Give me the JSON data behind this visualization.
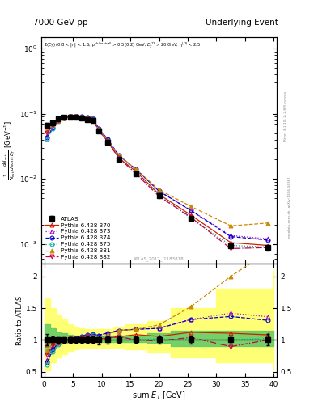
{
  "title_left": "7000 GeV pp",
  "title_right": "Underlying Event",
  "annotation": "ATLAS_2012_I1183818",
  "right_label": "Rivet 3.1.10, ≥ 2.8M events",
  "right_label2": "mcplots.cern.ch [arXiv:1306.3436]",
  "atlas_x": [
    0.5,
    1.5,
    2.5,
    3.5,
    4.5,
    5.5,
    6.5,
    7.5,
    8.5,
    9.5,
    11.0,
    13.0,
    16.0,
    20.0,
    25.5,
    32.5,
    39.0
  ],
  "atlas_y": [
    0.067,
    0.072,
    0.083,
    0.088,
    0.089,
    0.089,
    0.086,
    0.082,
    0.079,
    0.055,
    0.037,
    0.02,
    0.012,
    0.0055,
    0.0025,
    0.00095,
    0.00088
  ],
  "atlas_yerr": [
    0.006,
    0.004,
    0.004,
    0.004,
    0.004,
    0.004,
    0.004,
    0.004,
    0.004,
    0.004,
    0.002,
    0.001,
    0.0006,
    0.0003,
    0.00015,
    6e-05,
    8e-05
  ],
  "py370_x": [
    0.5,
    1.5,
    2.5,
    3.5,
    4.5,
    5.5,
    6.5,
    7.5,
    8.5,
    9.5,
    11.0,
    13.0,
    16.0,
    20.0,
    25.5,
    32.5,
    39.0
  ],
  "py370_y": [
    0.062,
    0.071,
    0.082,
    0.088,
    0.09,
    0.09,
    0.088,
    0.085,
    0.082,
    0.056,
    0.038,
    0.021,
    0.013,
    0.0058,
    0.0028,
    0.00105,
    0.00095
  ],
  "py373_x": [
    0.5,
    1.5,
    2.5,
    3.5,
    4.5,
    5.5,
    6.5,
    7.5,
    8.5,
    9.5,
    11.0,
    13.0,
    16.0,
    20.0,
    25.5,
    32.5,
    39.0
  ],
  "py373_y": [
    0.046,
    0.063,
    0.08,
    0.088,
    0.091,
    0.092,
    0.091,
    0.089,
    0.086,
    0.059,
    0.041,
    0.023,
    0.014,
    0.0065,
    0.0033,
    0.00135,
    0.0012
  ],
  "py374_x": [
    0.5,
    1.5,
    2.5,
    3.5,
    4.5,
    5.5,
    6.5,
    7.5,
    8.5,
    9.5,
    11.0,
    13.0,
    16.0,
    20.0,
    25.5,
    32.5,
    39.0
  ],
  "py374_y": [
    0.043,
    0.061,
    0.079,
    0.087,
    0.09,
    0.092,
    0.091,
    0.089,
    0.086,
    0.059,
    0.041,
    0.023,
    0.014,
    0.0065,
    0.0033,
    0.0013,
    0.00115
  ],
  "py375_x": [
    0.5,
    1.5,
    2.5,
    3.5,
    4.5,
    5.5,
    6.5,
    7.5,
    8.5,
    9.5,
    11.0,
    13.0,
    16.0,
    20.0,
    25.5,
    32.5,
    39.0
  ],
  "py375_y": [
    0.041,
    0.059,
    0.077,
    0.086,
    0.09,
    0.091,
    0.09,
    0.088,
    0.085,
    0.057,
    0.039,
    0.021,
    0.012,
    0.0056,
    0.0025,
    0.00095,
    0.0009
  ],
  "py381_x": [
    0.5,
    1.5,
    2.5,
    3.5,
    4.5,
    5.5,
    6.5,
    7.5,
    8.5,
    9.5,
    11.0,
    13.0,
    16.0,
    20.0,
    25.5,
    32.5,
    39.0
  ],
  "py381_y": [
    0.055,
    0.068,
    0.08,
    0.086,
    0.088,
    0.088,
    0.087,
    0.085,
    0.082,
    0.057,
    0.04,
    0.023,
    0.014,
    0.0068,
    0.0038,
    0.0019,
    0.0021
  ],
  "py382_x": [
    0.5,
    1.5,
    2.5,
    3.5,
    4.5,
    5.5,
    6.5,
    7.5,
    8.5,
    9.5,
    11.0,
    13.0,
    16.0,
    20.0,
    25.5,
    32.5,
    39.0
  ],
  "py382_y": [
    0.051,
    0.066,
    0.079,
    0.086,
    0.09,
    0.09,
    0.088,
    0.086,
    0.082,
    0.055,
    0.038,
    0.021,
    0.012,
    0.0054,
    0.0026,
    0.00085,
    0.00088
  ],
  "green_band_xe": [
    0,
    1,
    2,
    3,
    4,
    5,
    6,
    7,
    8,
    9,
    10,
    12,
    14,
    18,
    22,
    30,
    40
  ],
  "green_band_lo": [
    0.78,
    0.88,
    0.93,
    0.95,
    0.96,
    0.97,
    0.97,
    0.97,
    0.97,
    0.97,
    0.97,
    0.97,
    0.97,
    0.95,
    0.9,
    0.9,
    0.9
  ],
  "green_band_hi": [
    1.25,
    1.18,
    1.12,
    1.1,
    1.08,
    1.07,
    1.07,
    1.07,
    1.07,
    1.07,
    1.07,
    1.07,
    1.07,
    1.1,
    1.15,
    1.15,
    1.15
  ],
  "yellow_band_xe": [
    0,
    1,
    2,
    3,
    4,
    5,
    6,
    7,
    8,
    9,
    10,
    12,
    14,
    18,
    22,
    30,
    40
  ],
  "yellow_band_lo": [
    0.52,
    0.65,
    0.72,
    0.78,
    0.82,
    0.85,
    0.87,
    0.88,
    0.88,
    0.88,
    0.88,
    0.88,
    0.85,
    0.8,
    0.72,
    0.65,
    0.55
  ],
  "yellow_band_hi": [
    1.65,
    1.5,
    1.4,
    1.32,
    1.25,
    1.2,
    1.18,
    1.17,
    1.17,
    1.17,
    1.17,
    1.2,
    1.25,
    1.3,
    1.5,
    1.8,
    2.1
  ],
  "colors": {
    "atlas": "#000000",
    "py370": "#cc2200",
    "py373": "#aa00cc",
    "py374": "#0000cc",
    "py375": "#00aaaa",
    "py381": "#cc8800",
    "py382": "#cc0044"
  },
  "markers": {
    "atlas": "s",
    "py370": "^",
    "py373": "^",
    "py374": "o",
    "py375": "o",
    "py381": "^",
    "py382": "v"
  },
  "linestyles": {
    "py370": "-",
    "py373": ":",
    "py374": "--",
    "py375": ":",
    "py381": "--",
    "py382": "-."
  },
  "ylim_main": [
    0.0005,
    1.5
  ],
  "ylim_ratio": [
    0.42,
    2.2
  ],
  "xlim": [
    -0.5,
    40.5
  ]
}
